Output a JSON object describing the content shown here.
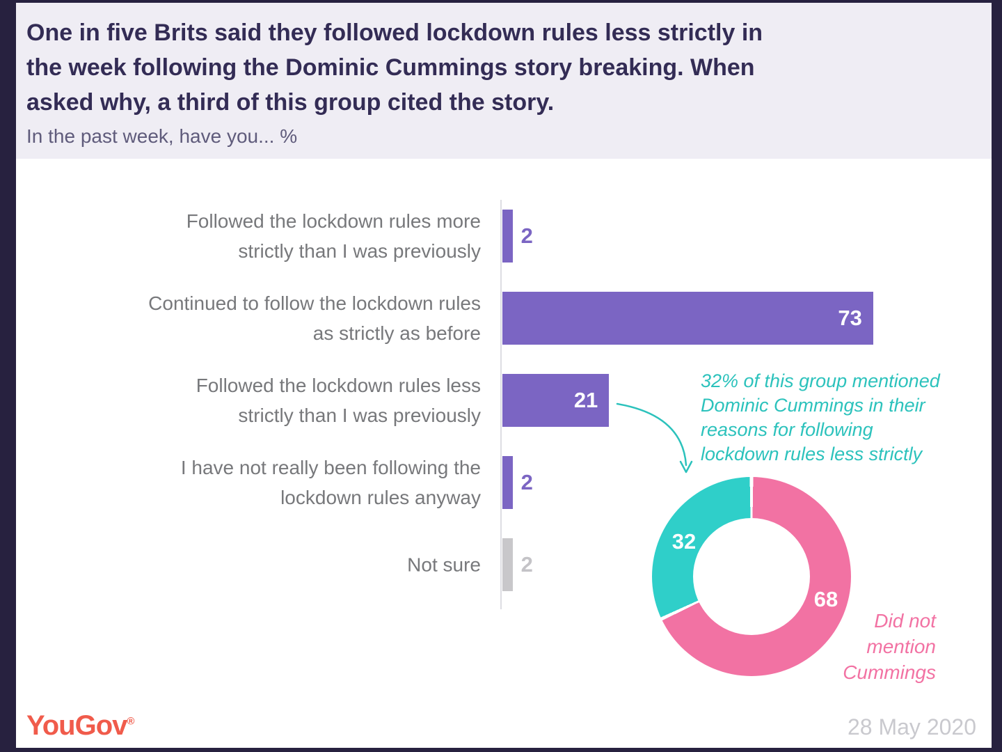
{
  "frame_color": "#27213F",
  "header": {
    "bg_color": "#EFEDF4",
    "title_lines": [
      "One in five Brits said they followed lockdown rules less strictly in",
      "the week following the Dominic Cummings story breaking. When",
      "asked why, a third of this group cited the story."
    ],
    "subtitle": "In the past week, have you... %"
  },
  "chart_data": [
    {
      "type": "bar",
      "orientation": "horizontal",
      "title": "In the past week, have you... %",
      "xlabel": "",
      "ylabel": "",
      "xlim": [
        0,
        100
      ],
      "grid": false,
      "categories": [
        "Followed the lockdown rules more\nstrictly than I was previously",
        "Continued to follow the lockdown rules\nas strictly as before",
        "Followed the lockdown rules less\nstrictly than I was previously",
        "I have not really been following the\nlockdown rules anyway",
        "Not sure"
      ],
      "values": [
        2,
        73,
        21,
        2,
        2
      ],
      "bar_colors": [
        "#7B65C3",
        "#7B65C3",
        "#7B65C3",
        "#7B65C3",
        "#C8C7CA"
      ],
      "value_colors": [
        "#7B65C3",
        "#FFFFFF",
        "#FFFFFF",
        "#7B65C3",
        "#C4C3C7"
      ],
      "label_color": "#77787B",
      "axis_color": "#DDDDE2"
    },
    {
      "type": "pie",
      "subtype": "donut",
      "direction": "clockwise",
      "start_angle_deg": 0,
      "segments": [
        {
          "label": "Did not mention Cummings",
          "value": 68,
          "color": "#F272A3"
        },
        {
          "label": "",
          "value": 32,
          "color": "#2FCFC9"
        }
      ]
    }
  ],
  "annotation": {
    "color": "#2CC2BC",
    "lines": [
      "32% of this group mentioned",
      "Dominic Cummings in their",
      "reasons for following",
      "lockdown rules less strictly"
    ]
  },
  "donut_side_label": {
    "color": "#F272A3",
    "lines": [
      "Did not",
      "mention",
      "Cummings"
    ]
  },
  "footer": {
    "logo_text": "YouGov",
    "logo_reg": "®",
    "logo_color": "#F05B4B",
    "date": "28 May 2020",
    "date_color": "#C9C9CE"
  }
}
